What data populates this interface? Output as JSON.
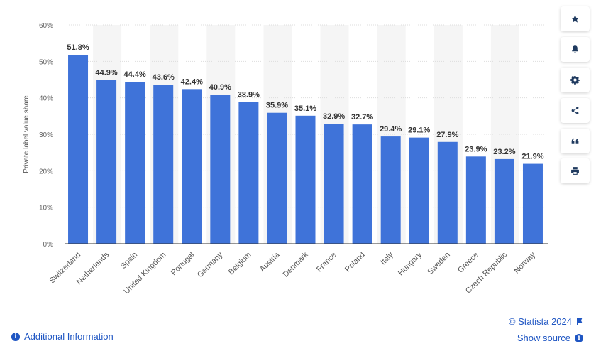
{
  "chart_data": {
    "type": "bar",
    "title": "",
    "xlabel": "",
    "ylabel": "Private label value share",
    "ylim": [
      0,
      60
    ],
    "yticks": [
      0,
      10,
      20,
      30,
      40,
      50,
      60
    ],
    "ytick_labels": [
      "0%",
      "10%",
      "20%",
      "30%",
      "40%",
      "50%",
      "60%"
    ],
    "categories": [
      "Switzerland",
      "Netherlands",
      "Spain",
      "United Kingdom",
      "Portugal",
      "Germany",
      "Belgium",
      "Austria",
      "Denmark",
      "France",
      "Poland",
      "Italy",
      "Hungary",
      "Sweden",
      "Greece",
      "Czech Republic",
      "Norway"
    ],
    "values": [
      51.8,
      44.9,
      44.4,
      43.6,
      42.4,
      40.9,
      38.9,
      35.9,
      35.1,
      32.9,
      32.7,
      29.4,
      29.1,
      27.9,
      23.9,
      23.2,
      21.9
    ],
    "value_labels": [
      "51.8%",
      "44.9%",
      "44.4%",
      "43.6%",
      "42.4%",
      "40.9%",
      "38.9%",
      "35.9%",
      "35.1%",
      "32.9%",
      "32.7%",
      "29.4%",
      "29.1%",
      "27.9%",
      "23.9%",
      "23.2%",
      "21.9%"
    ],
    "bar_color": "#3f73d9",
    "band_color": "#f5f5f5",
    "grid": true
  },
  "toolbar": [
    {
      "name": "star-icon"
    },
    {
      "name": "bell-icon"
    },
    {
      "name": "gear-icon"
    },
    {
      "name": "share-icon"
    },
    {
      "name": "quote-icon"
    },
    {
      "name": "print-icon"
    }
  ],
  "footer": {
    "additional_info": "Additional Information",
    "copyright": "© Statista 2024",
    "show_source": "Show source"
  }
}
